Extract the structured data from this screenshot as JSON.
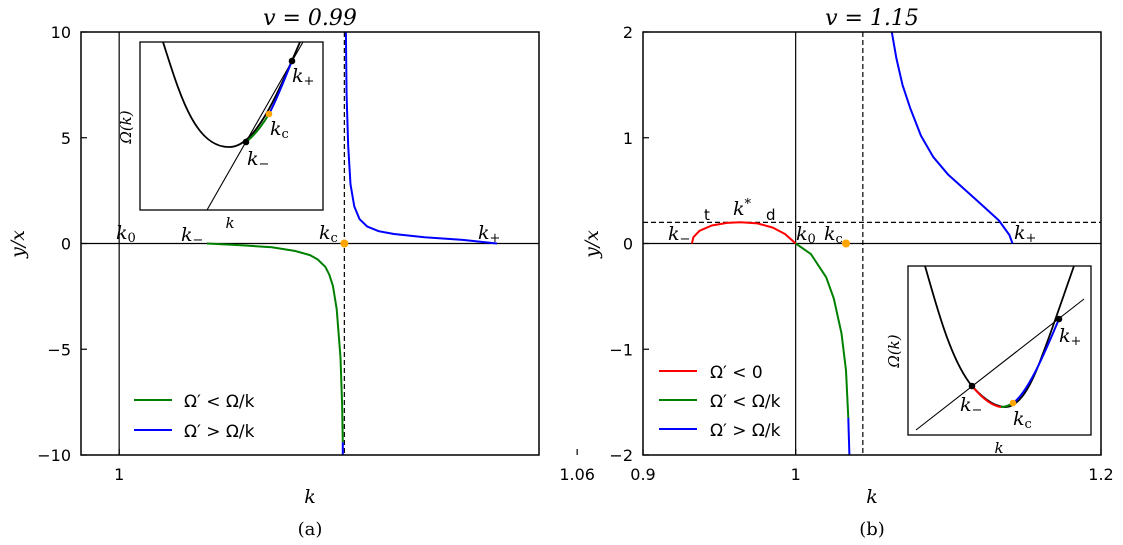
{
  "panels": [
    {
      "id": "a",
      "caption": "(a)",
      "title": "v = 0.99",
      "xlabel": "k",
      "ylabel": "y/x",
      "xticks": [
        {
          "v": 1,
          "label": "1"
        },
        {
          "v": 1.06,
          "label": "1.06"
        }
      ],
      "yticks": [
        {
          "v": -10,
          "label": "−10"
        },
        {
          "v": -5,
          "label": "−5"
        },
        {
          "v": 0,
          "label": "0"
        },
        {
          "v": 5,
          "label": "5"
        },
        {
          "v": 10,
          "label": "10"
        }
      ],
      "point_labels": [
        {
          "name": "k0",
          "text": "k",
          "sub": "0"
        },
        {
          "name": "k-minus",
          "text": "k",
          "sub": "−"
        },
        {
          "name": "kc",
          "text": "k",
          "sub": "c"
        },
        {
          "name": "k-plus",
          "text": "k",
          "sub": "+"
        }
      ],
      "legend": [
        {
          "name": "omega-prime-less-omega-over-k",
          "label": "Ω′ < Ω/k",
          "color": "#008000"
        },
        {
          "name": "omega-prime-greater-omega-over-k",
          "label": "Ω′ > Ω/k",
          "color": "#0000ff"
        }
      ],
      "inset": {
        "ylabel": "Ω(k)",
        "xlabel": "k",
        "point_labels": [
          {
            "name": "k-plus",
            "text": "k",
            "sub": "+"
          },
          {
            "name": "kc",
            "text": "k",
            "sub": "c"
          },
          {
            "name": "k-minus",
            "text": "k",
            "sub": "−"
          }
        ]
      }
    },
    {
      "id": "b",
      "caption": "(b)",
      "title": "v = 1.15",
      "xlabel": "k",
      "ylabel": "y/x",
      "xticks": [
        {
          "v": 0.9,
          "label": "0.9"
        },
        {
          "v": 1,
          "label": "1"
        },
        {
          "v": 1.2,
          "label": "1.2"
        }
      ],
      "yticks": [
        {
          "v": -2,
          "label": "−2"
        },
        {
          "v": -1,
          "label": "−1"
        },
        {
          "v": 0,
          "label": "0"
        },
        {
          "v": 1,
          "label": "1"
        },
        {
          "v": 2,
          "label": "2"
        }
      ],
      "point_labels": [
        {
          "name": "k-minus",
          "text": "k",
          "sub": "−"
        },
        {
          "name": "k-star",
          "text": "k",
          "sup": "*"
        },
        {
          "name": "k0",
          "text": "k",
          "sub": "0"
        },
        {
          "name": "kc",
          "text": "k",
          "sub": "c"
        },
        {
          "name": "k-plus",
          "text": "k",
          "sub": "+"
        }
      ],
      "small_labels": [
        {
          "name": "t-label",
          "text": "t"
        },
        {
          "name": "d-label",
          "text": "d"
        }
      ],
      "legend": [
        {
          "name": "omega-prime-less-zero",
          "label": "Ω′ < 0",
          "color": "#ff0000"
        },
        {
          "name": "omega-prime-less-omega-over-k",
          "label": "Ω′ < Ω/k",
          "color": "#008000"
        },
        {
          "name": "omega-prime-greater-omega-over-k",
          "label": "Ω′ > Ω/k",
          "color": "#0000ff"
        }
      ],
      "inset": {
        "ylabel": "Ω(k)",
        "xlabel": "k",
        "point_labels": [
          {
            "name": "k-plus",
            "text": "k",
            "sub": "+"
          },
          {
            "name": "k-minus",
            "text": "k",
            "sub": "−"
          },
          {
            "name": "kc",
            "text": "k",
            "sub": "c"
          }
        ]
      }
    }
  ],
  "chart_data": [
    {
      "type": "line",
      "panel": "a",
      "title": "v = 0.99",
      "xlabel": "k",
      "ylabel": "y/x",
      "xlim": [
        0.995,
        1.055
      ],
      "ylim": [
        -10,
        10
      ],
      "vlines": [
        {
          "x": 1.0,
          "style": "solid"
        },
        {
          "x": 1.0295,
          "style": "dashed"
        }
      ],
      "hlines": [
        {
          "y": 0,
          "style": "solid"
        }
      ],
      "markers": [
        {
          "x": 1.0295,
          "y": 0,
          "color": "#ffa500"
        }
      ],
      "series": [
        {
          "name": "Ω′ < Ω/k",
          "color": "#008000",
          "x": [
            1.0115,
            1.016,
            1.02,
            1.023,
            1.025,
            1.026,
            1.027,
            1.0275,
            1.028,
            1.0285,
            1.029,
            1.0292,
            1.0293
          ],
          "y": [
            0,
            -0.08,
            -0.18,
            -0.35,
            -0.55,
            -0.75,
            -1.1,
            -1.45,
            -2.0,
            -3.1,
            -5.4,
            -7.6,
            -9.4
          ]
        },
        {
          "name": "Ω′ > Ω/k",
          "color": "#0000ff",
          "x": [
            1.0297,
            1.0298,
            1.03,
            1.0303,
            1.0308,
            1.0315,
            1.0325,
            1.034,
            1.036,
            1.04,
            1.045,
            1.0495
          ],
          "y": [
            10,
            7.0,
            4.6,
            2.8,
            1.75,
            1.15,
            0.8,
            0.58,
            0.45,
            0.3,
            0.17,
            0
          ]
        },
        {
          "name": "Ω′ > Ω/k",
          "color": "#0000ff",
          "x": [
            1.0293,
            1.0293
          ],
          "y": [
            -9.4,
            -10
          ]
        }
      ]
    },
    {
      "type": "line",
      "panel": "b",
      "title": "v = 1.15",
      "xlabel": "k",
      "ylabel": "y/x",
      "xlim": [
        0.9,
        1.2
      ],
      "ylim": [
        -2,
        2
      ],
      "vlines": [
        {
          "x": 1.0,
          "style": "solid"
        },
        {
          "x": 1.044,
          "style": "dashed"
        }
      ],
      "hlines": [
        {
          "y": 0,
          "style": "solid"
        },
        {
          "y": 0.2,
          "style": "dashed"
        }
      ],
      "markers": [
        {
          "x": 1.033,
          "y": 0,
          "color": "#ffa500"
        }
      ],
      "series": [
        {
          "name": "Ω′ < 0",
          "color": "#ff0000",
          "x": [
            0.932,
            0.933,
            0.937,
            0.945,
            0.955,
            0.964,
            0.975,
            0.985,
            0.993,
            1.0
          ],
          "y": [
            0,
            0.06,
            0.12,
            0.17,
            0.195,
            0.2,
            0.19,
            0.15,
            0.09,
            0
          ]
        },
        {
          "name": "Ω′ < Ω/k",
          "color": "#008000",
          "x": [
            1.0,
            1.01,
            1.02,
            1.025,
            1.03,
            1.033,
            1.0345
          ],
          "y": [
            0,
            -0.1,
            -0.32,
            -0.52,
            -0.85,
            -1.2,
            -1.65
          ]
        },
        {
          "name": "Ω′ > Ω/k",
          "color": "#0000ff",
          "x": [
            1.0345,
            1.0352
          ],
          "y": [
            -1.65,
            -2
          ]
        },
        {
          "name": "Ω′ > Ω/k",
          "color": "#0000ff",
          "x": [
            1.063,
            1.066,
            1.07,
            1.075,
            1.082,
            1.09,
            1.1,
            1.11,
            1.12,
            1.133,
            1.14,
            1.142
          ],
          "y": [
            2,
            1.75,
            1.5,
            1.28,
            1.02,
            0.82,
            0.65,
            0.52,
            0.39,
            0.22,
            0.08,
            0
          ]
        }
      ]
    }
  ]
}
